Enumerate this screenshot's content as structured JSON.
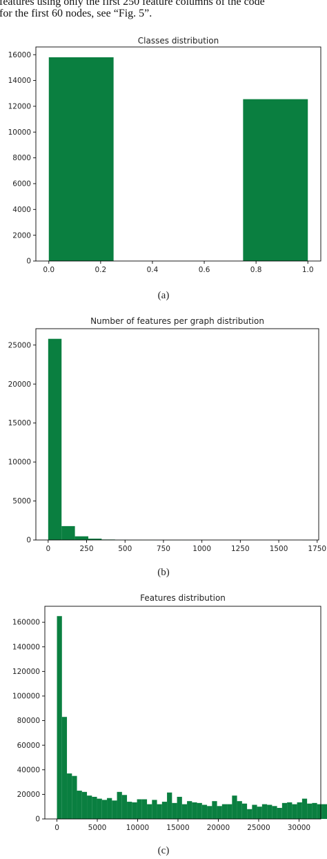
{
  "header": {
    "line1": "features using only the first 250 feature columns of the code",
    "line2": "for the first 60 nodes, see “Fig. 5”."
  },
  "colors": {
    "bar": "#0a7f40",
    "axis": "#000000"
  },
  "chart_data": [
    {
      "type": "bar",
      "title": "Classes distribution",
      "xlim": [
        -0.05,
        1.05
      ],
      "ylim": [
        0,
        16600
      ],
      "xticks": [
        0.0,
        0.2,
        0.4,
        0.6,
        0.8,
        1.0
      ],
      "xtick_labels": [
        "0.0",
        "0.2",
        "0.4",
        "0.6",
        "0.8",
        "1.0"
      ],
      "yticks": [
        0,
        2000,
        4000,
        6000,
        8000,
        10000,
        12000,
        14000,
        16000
      ],
      "ytick_labels": [
        "0",
        "2000",
        "4000",
        "6000",
        "8000",
        "10000",
        "12000",
        "14000",
        "16000"
      ],
      "bins": [
        [
          0.0,
          0.25
        ],
        [
          0.75,
          1.0
        ]
      ],
      "values": [
        15800,
        12550
      ],
      "caption": "(a)"
    },
    {
      "type": "bar",
      "title": "Number of features per graph distribution",
      "xlim": [
        -80,
        1760
      ],
      "ylim": [
        0,
        27100
      ],
      "xticks": [
        0,
        250,
        500,
        750,
        1000,
        1250,
        1500,
        1750
      ],
      "xtick_labels": [
        "0",
        "250",
        "500",
        "750",
        "1000",
        "1250",
        "1500",
        "1750"
      ],
      "yticks": [
        0,
        5000,
        10000,
        15000,
        20000,
        25000
      ],
      "ytick_labels": [
        "0",
        "5000",
        "10000",
        "15000",
        "20000",
        "25000"
      ],
      "bin_start": 0,
      "bin_width": 87,
      "values": [
        25800,
        1780,
        470,
        170,
        60,
        20,
        8,
        4,
        2,
        1,
        1,
        0,
        0,
        0,
        0,
        0,
        0,
        0,
        0,
        1
      ],
      "caption": "(b)"
    },
    {
      "type": "bar",
      "title": "Features distribution",
      "xlim": [
        -1500,
        32700
      ],
      "ylim": [
        0,
        173000
      ],
      "xticks": [
        0,
        5000,
        10000,
        15000,
        20000,
        25000,
        30000
      ],
      "xtick_labels": [
        "0",
        "5000",
        "10000",
        "15000",
        "20000",
        "25000",
        "30000"
      ],
      "yticks": [
        0,
        20000,
        40000,
        60000,
        80000,
        100000,
        120000,
        140000,
        160000
      ],
      "ytick_labels": [
        "0",
        "20000",
        "40000",
        "60000",
        "80000",
        "100000",
        "120000",
        "140000",
        "160000"
      ],
      "bin_start": 0,
      "bin_width": 620,
      "values": [
        165000,
        83000,
        37000,
        35000,
        23000,
        22000,
        19000,
        18000,
        16500,
        15500,
        17000,
        15000,
        22000,
        19500,
        14000,
        13500,
        16000,
        16000,
        12000,
        15500,
        12000,
        14000,
        21500,
        13000,
        18000,
        12000,
        14500,
        13500,
        13000,
        11500,
        10500,
        14500,
        10500,
        12000,
        12000,
        19000,
        14500,
        12500,
        8000,
        11500,
        10000,
        12000,
        11500,
        10500,
        9000,
        13000,
        13500,
        12000,
        13500,
        16500,
        12500,
        13000,
        12000,
        12000
      ],
      "caption": "(c)"
    }
  ]
}
